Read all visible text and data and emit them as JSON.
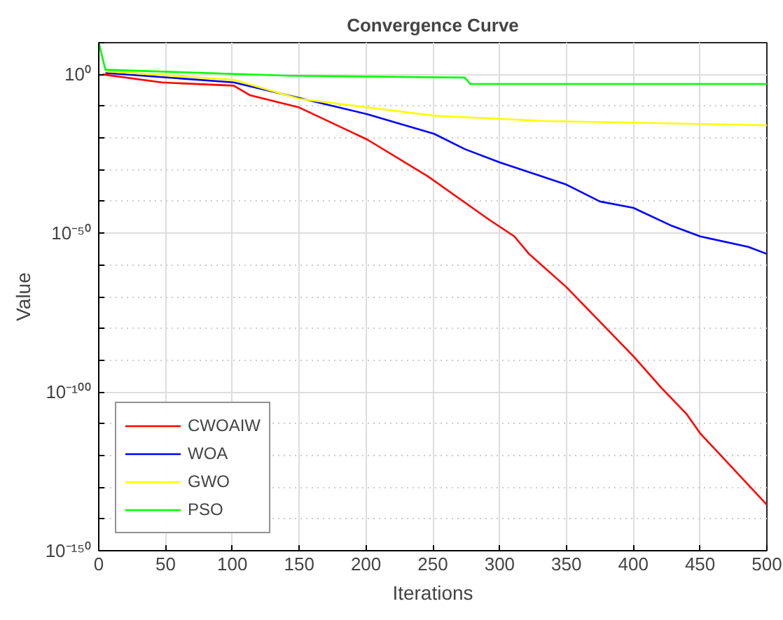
{
  "chart_data": {
    "type": "line",
    "title": "Convergence Curve",
    "xlabel": "Iterations",
    "ylabel": "Value",
    "log": "y",
    "grid": true,
    "legend": "bottom left",
    "line_style": "solid",
    "marker": "none",
    "xlim": [
      0,
      500
    ],
    "xticks": [
      0,
      50,
      100,
      150,
      200,
      250,
      300,
      350,
      400,
      450,
      500
    ],
    "ylim": [
      1e-150,
      10000000000.0
    ],
    "yticks": [
      {
        "value": 10000000000.0,
        "label": null
      },
      {
        "value": 1,
        "label": "10⁰"
      },
      {
        "value": 1e-10,
        "label": null
      },
      {
        "value": 1e-20,
        "label": null
      },
      {
        "value": 1e-30,
        "label": null
      },
      {
        "value": 1e-40,
        "label": null
      },
      {
        "value": 1e-50,
        "label": "10⁻⁵⁰"
      },
      {
        "value": 1e-60,
        "label": null
      },
      {
        "value": 1e-70,
        "label": null
      },
      {
        "value": 1e-80,
        "label": null
      },
      {
        "value": 1e-90,
        "label": null
      },
      {
        "value": 1e-100,
        "label": "10⁻¹⁰⁰"
      },
      {
        "value": 1e-110,
        "label": null
      },
      {
        "value": 1e-120,
        "label": null
      },
      {
        "value": 1e-130,
        "label": null
      },
      {
        "value": 1e-140,
        "label": null
      },
      {
        "value": 1e-150,
        "label": "10⁻¹⁵⁰"
      }
    ],
    "series": [
      {
        "name": "CWOAIW",
        "color": "#ff0000",
        "x": [
          3,
          47,
          101,
          113,
          150,
          201,
          246,
          292,
          311,
          322,
          350,
          400,
          421,
          440,
          450,
          500
        ],
        "values": [
          1,
          0.003,
          0.0003,
          3e-07,
          4e-11,
          3e-21,
          1e-32,
          2e-46,
          1e-51,
          3e-57,
          1e-67,
          2e-89,
          2e-99,
          1e-107,
          1e-113,
          3e-136
        ]
      },
      {
        "name": "WOA",
        "color": "#0000ff",
        "x": [
          5,
          101,
          150,
          201,
          251,
          274,
          300,
          350,
          375,
          400,
          429,
          450,
          486,
          500
        ],
        "values": [
          3,
          0.003,
          4e-08,
          3e-13,
          2e-19,
          3e-24,
          2e-28,
          2e-35,
          1e-40,
          1e-42,
          2e-48,
          1e-51,
          5e-55,
          3e-57
        ]
      },
      {
        "name": "GWO",
        "color": "#ffff00",
        "x": [
          5,
          101,
          150,
          251,
          335,
          500
        ],
        "values": [
          10,
          0.02,
          2e-08,
          1e-13,
          2e-15,
          1e-16
        ]
      },
      {
        "name": "PSO",
        "color": "#00ff00",
        "x": [
          0,
          5,
          143,
          274,
          278,
          500
        ],
        "values": [
          10000000000.0,
          30,
          0.4,
          0.1,
          0.001,
          0.001
        ]
      }
    ]
  }
}
